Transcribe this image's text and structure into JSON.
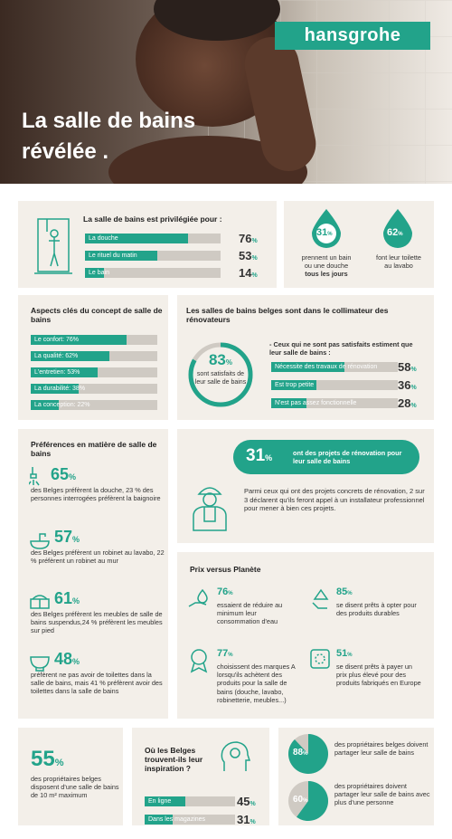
{
  "brand": "hansgrohe",
  "hero": {
    "title_line1": "La salle de bains",
    "title_line2": "révélée ."
  },
  "privileged": {
    "title": "La salle de bains est privilégiée pour :",
    "items": [
      {
        "label": "La douche",
        "value": 76,
        "unit": "%"
      },
      {
        "label": "Le rituel du matin",
        "value": 53,
        "unit": "%"
      },
      {
        "label": "Le bain",
        "value": 14,
        "unit": "%"
      }
    ]
  },
  "drops": [
    {
      "value": "31",
      "unit": "%",
      "text1": "prennent un bain",
      "text2": "ou une douche",
      "text3": "tous les jours"
    },
    {
      "value": "62",
      "unit": "%",
      "text1": "font leur toilette",
      "text2": "au lavabo"
    }
  ],
  "aspects": {
    "title": "Aspects clés du concept de salle de bains",
    "items": [
      {
        "label": "Le confort: 76%",
        "value": 76
      },
      {
        "label": "La qualité: 62%",
        "value": 62
      },
      {
        "label": "L'entretien: 53%",
        "value": 53
      },
      {
        "label": "La durabilité: 38%",
        "value": 38
      },
      {
        "label": "La conception: 22%",
        "value": 22
      }
    ]
  },
  "renovators": {
    "title": "Les salles de bains belges sont dans le collimateur des rénovateurs",
    "gauge_value": 83,
    "gauge_unit": "%",
    "gauge_text": "sont satisfaits de leur salle de bains",
    "lead": "- Ceux qui ne sont pas satisfaits estiment que leur salle de bains :",
    "items": [
      {
        "label": "Nécessite des travaux de rénovation",
        "value": 58,
        "unit": "%"
      },
      {
        "label": "Est trop petite",
        "value": 36,
        "unit": "%"
      },
      {
        "label": "N'est pas assez fonctionnelle",
        "value": 28,
        "unit": "%"
      }
    ],
    "banner_value": "31",
    "banner_unit": "%",
    "banner_text": "ont des projets de rénovation pour leur salle de bains",
    "plumber_text": "Parmi ceux qui ont des projets concrets de rénovation, 2 sur 3 déclarent qu'ils feront appel à un installateur professionnel pour mener à bien ces projets."
  },
  "preferences": {
    "title": "Préférences en matière de salle de bains",
    "items": [
      {
        "value": "65",
        "unit": "%",
        "text": "des Belges préfèrent la douche, 23 % des personnes interrogées préfèrent la baignoire"
      },
      {
        "value": "57",
        "unit": "%",
        "text": "des Belges préfèrent un robinet au lavabo, 22 % préfèrent un robinet au mur"
      },
      {
        "value": "61",
        "unit": "%",
        "text": "des Belges préfèrent les meubles de salle de bains suspendus,24 % préfèrent les meubles sur pied"
      },
      {
        "value": "48",
        "unit": "%",
        "text": "préfèrent ne pas avoir de toilettes dans la salle de bains, mais 41 % préfèrent avoir des toilettes dans la salle de bains"
      }
    ]
  },
  "planet": {
    "title": "Prix versus Planète",
    "items": [
      {
        "value": "76",
        "unit": "%",
        "text": "essaient de réduire au minimum leur consommation d'eau"
      },
      {
        "value": "85",
        "unit": "%",
        "text": "se disent prêts à opter pour des produits durables"
      },
      {
        "value": "77",
        "unit": "%",
        "text": "choisissent des marques A lorsqu'ils achètent des produits pour la salle de bains (douche, lavabo, robinetterie, meubles...)"
      },
      {
        "value": "51",
        "unit": "%",
        "text": "se disent prêts à payer un prix plus élevé pour des produits fabriqués en Europe"
      }
    ]
  },
  "floor": {
    "value": "55",
    "unit": "%",
    "text": "des propriétaires belges disposent d'une salle de bains de 10 m² maximum"
  },
  "inspiration": {
    "title": "Où les Belges trouvent-ils leur inspiration ?",
    "items": [
      {
        "label": "En ligne",
        "value": 45,
        "unit": "%"
      },
      {
        "label": "Dans les magazines",
        "value": 31,
        "unit": "%"
      }
    ]
  },
  "sharing": [
    {
      "value": "88",
      "unit": "%",
      "fraction": 0.88,
      "text": "des propriétaires belges doivent partager leur salle de bains"
    },
    {
      "value": "60",
      "unit": "%",
      "fraction": 0.6,
      "text": "des propriétaires doivent partager leur salle de bains avec plus d'une personne"
    }
  ],
  "colors": {
    "accent": "#22a38a",
    "card": "#f3efe9",
    "track": "#cfcac3"
  }
}
